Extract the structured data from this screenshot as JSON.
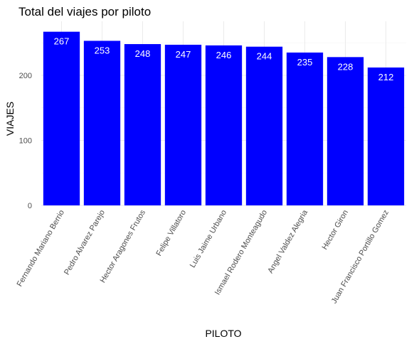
{
  "chart_data": {
    "type": "bar",
    "title": "Total del viajes por piloto",
    "xlabel": "PILOTO",
    "ylabel": "VIAJES",
    "categories": [
      "Fernando Mariano Berrio",
      "Pedro Alvarez Parejo",
      "Hector Aragones Frutos",
      "Felipe Villatoro",
      "Luis Jaime Urbano",
      "Ismael Rodero Monteagudo",
      "Angel Valdez Alegria",
      "Hector Giron",
      "Juan Francisco Portillo Gomez"
    ],
    "values": [
      267,
      253,
      248,
      247,
      246,
      244,
      235,
      228,
      212
    ],
    "ylim": [
      0,
      283
    ],
    "yticks": [
      0,
      100,
      200
    ],
    "grid": true,
    "legend": "none",
    "bar_color": "#0000ff",
    "label_color": "#ffffff",
    "x_tick_rotation": "-60deg"
  }
}
